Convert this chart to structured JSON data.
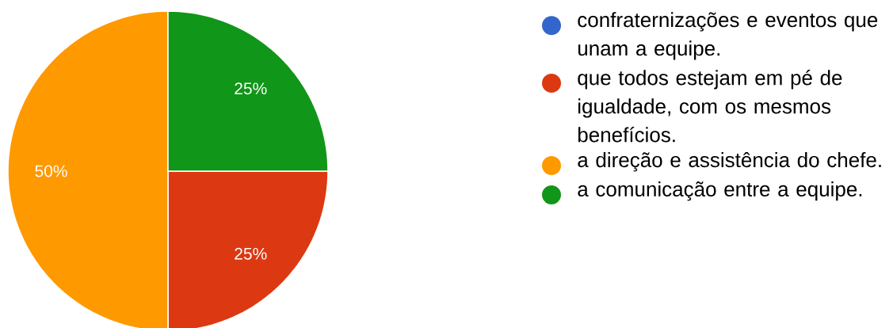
{
  "chart_data": {
    "type": "pie",
    "categories": [
      "confraternizações e eventos que unam a equipe.",
      "que todos estejam em pé de igualdade, com os mesmos benefícios.",
      "a direção e assistência do chefe.",
      "a comunicação entre a equipe."
    ],
    "values": [
      0,
      25,
      50,
      25
    ],
    "colors": [
      "#3366cc",
      "#dc3912",
      "#ff9900",
      "#109618"
    ],
    "value_labels": [
      null,
      "25%",
      "50%",
      "25%"
    ],
    "legend": "right"
  }
}
